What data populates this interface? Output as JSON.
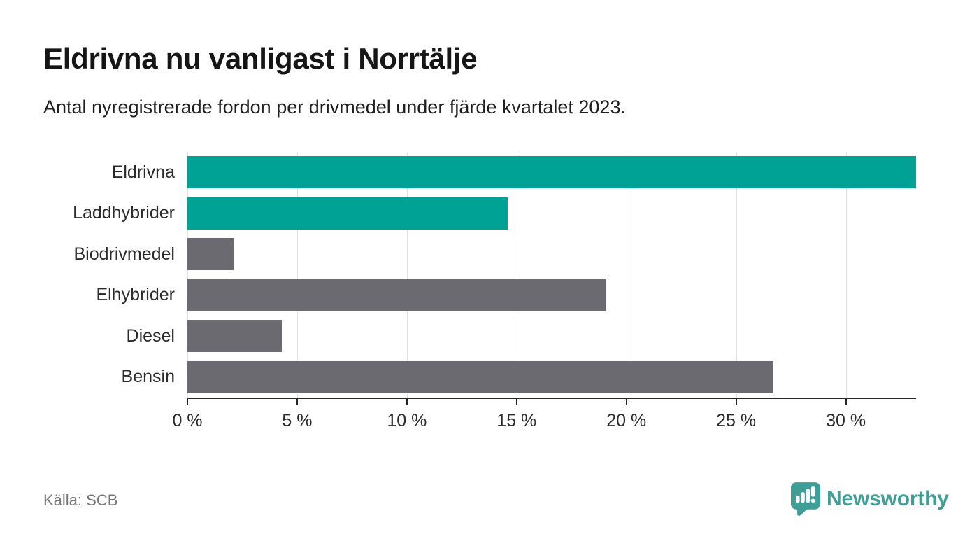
{
  "page": {
    "title": "Eldrivna nu vanligast i Norrtälje",
    "subtitle": "Antal nyregistrerade fordon per drivmedel under fjärde kvartalet 2023.",
    "source": "Källa: SCB",
    "logo_text": "Newsworthy"
  },
  "colors": {
    "highlight_bar": "#00a296",
    "default_bar": "#6b6a70",
    "grid": "#e2e2e2",
    "axis": "#262626",
    "logo": "#3f9f97"
  },
  "chart_data": {
    "type": "bar",
    "orientation": "horizontal",
    "title": "Eldrivna nu vanligast i Norrtälje",
    "subtitle": "Antal nyregistrerade fordon per drivmedel under fjärde kvartalet 2023.",
    "xlabel": "",
    "ylabel": "",
    "unit": "%",
    "categories": [
      "Eldrivna",
      "Laddhybrider",
      "Biodrivmedel",
      "Elhybrider",
      "Diesel",
      "Bensin"
    ],
    "values": [
      33.2,
      14.6,
      2.1,
      19.1,
      4.3,
      26.7
    ],
    "highlighted": [
      true,
      true,
      false,
      false,
      false,
      false
    ],
    "xlim": [
      0,
      33.2
    ],
    "xticks": [
      0,
      5,
      10,
      15,
      20,
      25,
      30
    ],
    "xtick_labels": [
      "0 %",
      "5 %",
      "10 %",
      "15 %",
      "20 %",
      "25 %",
      "30 %"
    ],
    "grid": true,
    "legend": false,
    "source": "Källa: SCB"
  }
}
